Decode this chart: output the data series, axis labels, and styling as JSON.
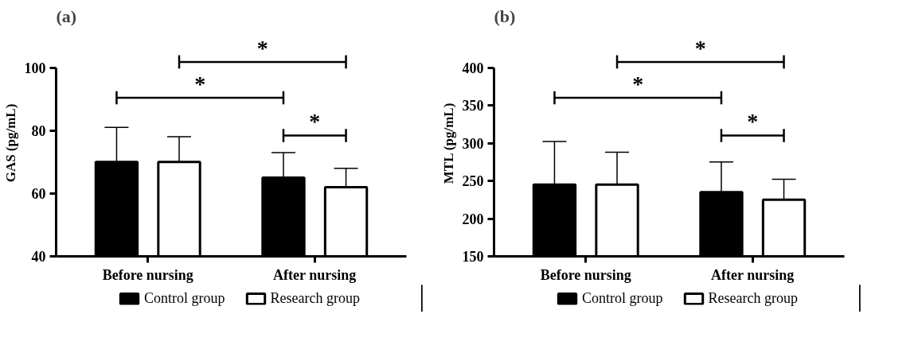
{
  "chart_data": [
    {
      "type": "bar",
      "title": "(a)",
      "ylabel": "GAS (pg/mL)",
      "categories": [
        "Before nursing",
        "After nursing"
      ],
      "series": [
        {
          "name": "Control group",
          "color": "#000000",
          "values": [
            70,
            65
          ],
          "errors": [
            [
              70,
              81
            ],
            [
              65,
              73
            ]
          ]
        },
        {
          "name": "Research group",
          "color": "#ffffff",
          "values": [
            70,
            62
          ],
          "errors": [
            [
              70,
              78
            ],
            [
              62,
              68
            ]
          ]
        }
      ],
      "ylim": [
        40,
        100
      ],
      "yticks": [
        40,
        60,
        80,
        100
      ],
      "grid": false,
      "legend": "bottom",
      "annotations": [
        "*",
        "*",
        "*"
      ]
    },
    {
      "type": "bar",
      "title": "(b)",
      "ylabel": "MTL (pg/mL)",
      "categories": [
        "Before nursing",
        "After nursing"
      ],
      "series": [
        {
          "name": "Control group",
          "color": "#000000",
          "values": [
            245,
            235
          ],
          "errors": [
            [
              245,
              302
            ],
            [
              235,
              275
            ]
          ]
        },
        {
          "name": "Research group",
          "color": "#ffffff",
          "values": [
            245,
            225
          ],
          "errors": [
            [
              245,
              288
            ],
            [
              225,
              252
            ]
          ]
        }
      ],
      "ylim": [
        150,
        400
      ],
      "yticks": [
        150,
        200,
        250,
        300,
        350,
        400
      ],
      "grid": false,
      "legend": "bottom",
      "annotations": [
        "*",
        "*",
        "*"
      ]
    }
  ]
}
